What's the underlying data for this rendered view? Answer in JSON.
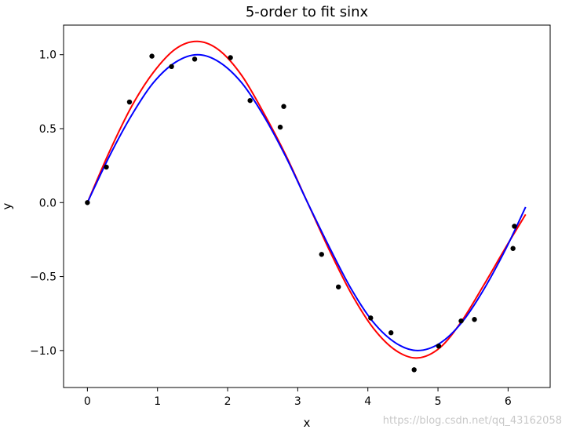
{
  "chart_data": {
    "type": "scatter",
    "title": "5-order to fit sinx",
    "xlabel": "x",
    "ylabel": "y",
    "xlim": [
      -0.34,
      6.6
    ],
    "ylim": [
      -1.25,
      1.2
    ],
    "xticks": [
      0,
      1,
      2,
      3,
      4,
      5,
      6
    ],
    "yticks": [
      -1.0,
      -0.5,
      0.0,
      0.5,
      1.0
    ],
    "ytick_labels": [
      "−1.0",
      "−0.5",
      "0.0",
      "0.5",
      "1.0"
    ],
    "grid": false,
    "series": [
      {
        "kind": "scatter",
        "color": "#000000",
        "x": [
          0.0,
          0.27,
          0.6,
          0.92,
          1.2,
          1.53,
          2.04,
          2.32,
          2.75,
          2.8,
          3.34,
          3.58,
          4.04,
          4.33,
          4.66,
          5.01,
          5.33,
          5.52,
          6.07,
          6.09
        ],
        "y": [
          0.0,
          0.24,
          0.68,
          0.99,
          0.92,
          0.97,
          0.98,
          0.69,
          0.51,
          0.65,
          -0.35,
          -0.57,
          -0.78,
          -0.88,
          -1.13,
          -0.97,
          -0.8,
          -0.79,
          -0.31,
          -0.16
        ]
      },
      {
        "kind": "line",
        "color": "#ff0000",
        "x": [
          0.0,
          0.31,
          0.63,
          0.94,
          1.26,
          1.57,
          1.88,
          2.2,
          2.51,
          2.83,
          3.14,
          3.46,
          3.77,
          4.08,
          4.4,
          4.71,
          5.03,
          5.34,
          5.65,
          5.97,
          6.25
        ],
        "y": [
          0.0,
          0.34,
          0.65,
          0.88,
          1.04,
          1.09,
          1.03,
          0.86,
          0.61,
          0.32,
          0.0,
          -0.33,
          -0.62,
          -0.85,
          -1.0,
          -1.05,
          -0.98,
          -0.8,
          -0.56,
          -0.3,
          -0.08
        ]
      },
      {
        "kind": "line",
        "color": "#0000ff",
        "x": [
          0.0,
          0.31,
          0.63,
          0.94,
          1.26,
          1.57,
          1.88,
          2.2,
          2.51,
          2.83,
          3.14,
          3.46,
          3.77,
          4.08,
          4.4,
          4.71,
          5.03,
          5.34,
          5.65,
          5.97,
          6.25
        ],
        "y": [
          0.0,
          0.31,
          0.59,
          0.81,
          0.95,
          1.0,
          0.95,
          0.81,
          0.59,
          0.31,
          0.0,
          -0.31,
          -0.59,
          -0.81,
          -0.95,
          -1.0,
          -0.95,
          -0.81,
          -0.59,
          -0.31,
          -0.03
        ]
      }
    ]
  },
  "watermark": "https://blog.csdn.net/qq_43162058"
}
